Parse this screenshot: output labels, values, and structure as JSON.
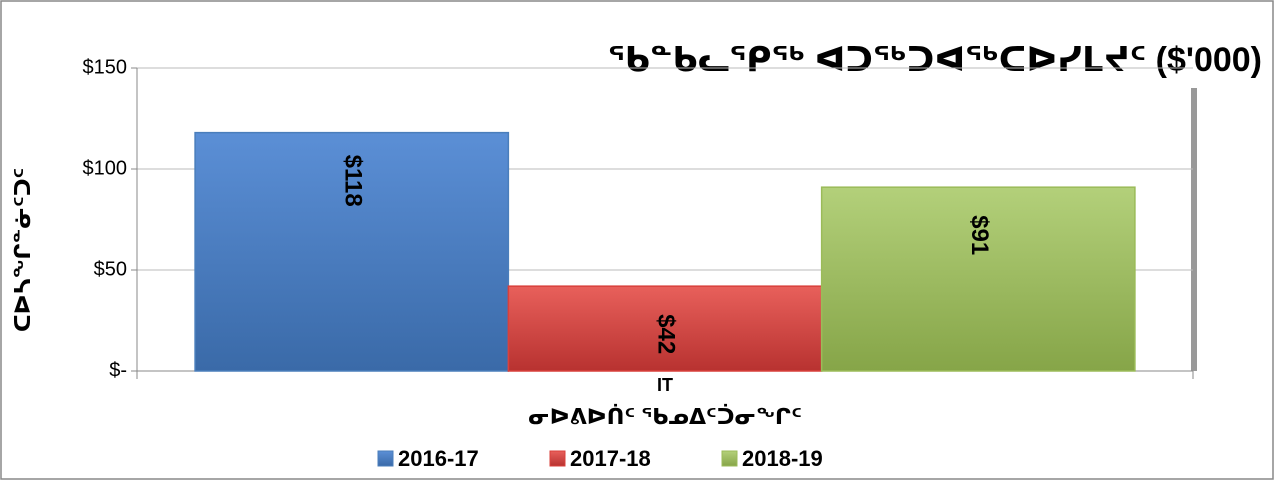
{
  "chart_data": {
    "type": "bar",
    "title": "ᖃᓐᑲᓚᕿᖅ ᐊᑐᖅᑐᐊᖅᑕᐅᓯᒪᔪᑦ ($'000)",
    "y_label": "ᑕᐅᓴᖕᒋᓐᓃᑦᑐᑦ",
    "x_label": "ᓂᐅᕕᐅᑏᑦ ᖃᓄᐃᑦᑑᓂᖕᒋᑦ",
    "categories": [
      "IT"
    ],
    "series": [
      {
        "name": "2016-17",
        "color": "#4a7ebb",
        "values": [
          118
        ],
        "value_labels": [
          "$118"
        ]
      },
      {
        "name": "2017-18",
        "color": "#d9403b",
        "values": [
          42
        ],
        "value_labels": [
          "$42"
        ]
      },
      {
        "name": "2018-19",
        "color": "#9bbb59",
        "values": [
          91
        ],
        "value_labels": [
          "$91"
        ]
      }
    ],
    "ylim": [
      0,
      150
    ],
    "yticks": [
      {
        "value": 0,
        "label": "$-"
      },
      {
        "value": 50,
        "label": "$50"
      },
      {
        "value": 100,
        "label": "$100"
      },
      {
        "value": 150,
        "label": "$150"
      }
    ],
    "grid": true,
    "legend": "bottom"
  }
}
